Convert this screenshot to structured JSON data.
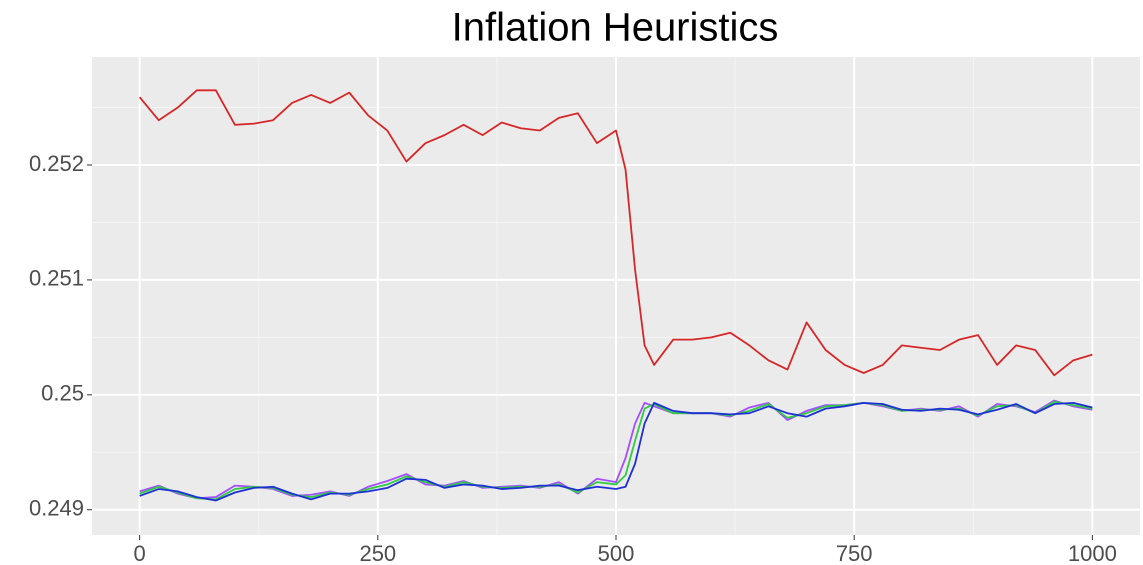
{
  "chart_data": {
    "type": "line",
    "title": "Inflation Heuristics",
    "x": [
      0,
      20,
      40,
      60,
      80,
      100,
      120,
      140,
      160,
      180,
      200,
      220,
      240,
      260,
      280,
      300,
      320,
      340,
      360,
      380,
      400,
      420,
      440,
      460,
      480,
      500,
      510,
      520,
      530,
      540,
      560,
      580,
      600,
      620,
      640,
      660,
      680,
      700,
      720,
      740,
      760,
      780,
      800,
      820,
      840,
      860,
      880,
      900,
      920,
      940,
      960,
      980,
      1000
    ],
    "series": [
      {
        "color": "#d62728",
        "values": [
          0.25259,
          0.25239,
          0.2525,
          0.25265,
          0.25265,
          0.25235,
          0.25236,
          0.25239,
          0.25254,
          0.25261,
          0.25254,
          0.25263,
          0.25243,
          0.2523,
          0.25203,
          0.25219,
          0.25226,
          0.25235,
          0.25226,
          0.25237,
          0.25232,
          0.2523,
          0.25241,
          0.25245,
          0.25219,
          0.2523,
          0.25196,
          0.25109,
          0.25043,
          0.25026,
          0.25048,
          0.25048,
          0.2505,
          0.25054,
          0.25043,
          0.2503,
          0.25022,
          0.25063,
          0.25039,
          0.25026,
          0.25019,
          0.25026,
          0.25043,
          0.25041,
          0.25039,
          0.25048,
          0.25052,
          0.25026,
          0.25043,
          0.25039,
          0.25017,
          0.2503,
          0.25035
        ]
      },
      {
        "color": "#a64dff",
        "values": [
          0.24916,
          0.24921,
          0.24914,
          0.2491,
          0.24911,
          0.24921,
          0.2492,
          0.24918,
          0.24912,
          0.24913,
          0.24916,
          0.24912,
          0.2492,
          0.24925,
          0.24931,
          0.24922,
          0.24921,
          0.24925,
          0.24919,
          0.2492,
          0.24921,
          0.24919,
          0.24924,
          0.24914,
          0.24927,
          0.24924,
          0.24945,
          0.24975,
          0.24993,
          0.2499,
          0.24984,
          0.24984,
          0.24984,
          0.24981,
          0.24989,
          0.24993,
          0.24978,
          0.24986,
          0.24991,
          0.24991,
          0.24993,
          0.2499,
          0.24986,
          0.24988,
          0.24986,
          0.2499,
          0.24981,
          0.24992,
          0.2499,
          0.24985,
          0.24995,
          0.2499,
          0.24987
        ]
      },
      {
        "color": "#2ecc40",
        "values": [
          0.24914,
          0.2492,
          0.24915,
          0.2491,
          0.24909,
          0.24918,
          0.2492,
          0.24919,
          0.24913,
          0.24911,
          0.24915,
          0.24913,
          0.24918,
          0.24922,
          0.24929,
          0.24924,
          0.2492,
          0.24924,
          0.2492,
          0.24919,
          0.2492,
          0.2492,
          0.24922,
          0.24915,
          0.24924,
          0.24922,
          0.2493,
          0.2496,
          0.24988,
          0.24992,
          0.24984,
          0.24984,
          0.24984,
          0.24982,
          0.24986,
          0.24992,
          0.2498,
          0.24984,
          0.2499,
          0.24991,
          0.24993,
          0.24991,
          0.24986,
          0.24987,
          0.24987,
          0.24988,
          0.24982,
          0.2499,
          0.24991,
          0.24984,
          0.24994,
          0.24991,
          0.24988
        ]
      },
      {
        "color": "#1f2fd6",
        "values": [
          0.24912,
          0.24918,
          0.24916,
          0.24911,
          0.24908,
          0.24915,
          0.24919,
          0.2492,
          0.24914,
          0.24909,
          0.24914,
          0.24914,
          0.24916,
          0.24919,
          0.24927,
          0.24926,
          0.24919,
          0.24922,
          0.24921,
          0.24918,
          0.24919,
          0.24921,
          0.24921,
          0.24917,
          0.2492,
          0.24918,
          0.2492,
          0.2494,
          0.24975,
          0.24993,
          0.24986,
          0.24984,
          0.24984,
          0.24983,
          0.24984,
          0.2499,
          0.24984,
          0.24981,
          0.24988,
          0.2499,
          0.24993,
          0.24992,
          0.24987,
          0.24986,
          0.24988,
          0.24987,
          0.24983,
          0.24987,
          0.24992,
          0.24984,
          0.24992,
          0.24993,
          0.24989
        ]
      }
    ],
    "xlim": [
      -50,
      1050
    ],
    "ylim": [
      0.24878,
      0.25294
    ],
    "xticks": [
      0,
      250,
      500,
      750,
      1000
    ],
    "yticks": [
      0.249,
      0.25,
      0.251,
      0.252
    ],
    "x_minor_ticks": [
      125,
      375,
      625,
      875
    ],
    "y_minor_ticks": [
      0.2495,
      0.2505,
      0.2515,
      0.2525
    ],
    "grid": true
  }
}
